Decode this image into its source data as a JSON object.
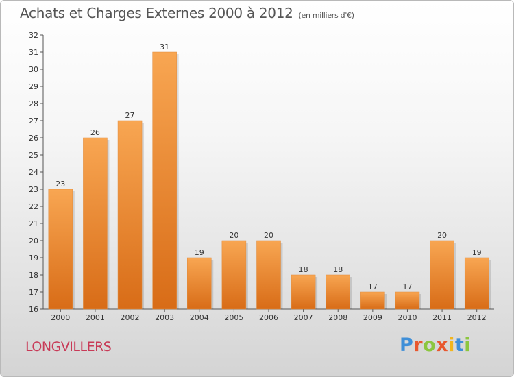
{
  "header": {
    "title": "Achats et Charges Externes 2000 à 2012",
    "subtitle": "(en milliers d'€)"
  },
  "footer": {
    "commune": "LONGVILLERS",
    "brand": "Proxiti"
  },
  "colors": {
    "bar_top": "#f8a652",
    "bar_bottom": "#d86c17",
    "commune_text": "#c83a57",
    "brand_letters": [
      "#3f8fd8",
      "#e8572e",
      "#8cc63f",
      "#e8572e",
      "#f2b51c",
      "#3f8fd8",
      "#8cc63f"
    ]
  },
  "chart_data": {
    "type": "bar",
    "categories": [
      "2000",
      "2001",
      "2002",
      "2003",
      "2004",
      "2005",
      "2006",
      "2007",
      "2008",
      "2009",
      "2010",
      "2011",
      "2012"
    ],
    "values": [
      23,
      26,
      27,
      31,
      19,
      20,
      20,
      18,
      18,
      17,
      17,
      20,
      19
    ],
    "title": "Achats et Charges Externes 2000 à 2012",
    "subtitle": "(en milliers d'€)",
    "xlabel": "",
    "ylabel": "",
    "ylim": [
      16,
      32
    ],
    "yticks": [
      16,
      17,
      18,
      19,
      20,
      21,
      22,
      23,
      24,
      25,
      26,
      27,
      28,
      29,
      30,
      31,
      32
    ],
    "grid": false,
    "legend": "none"
  }
}
